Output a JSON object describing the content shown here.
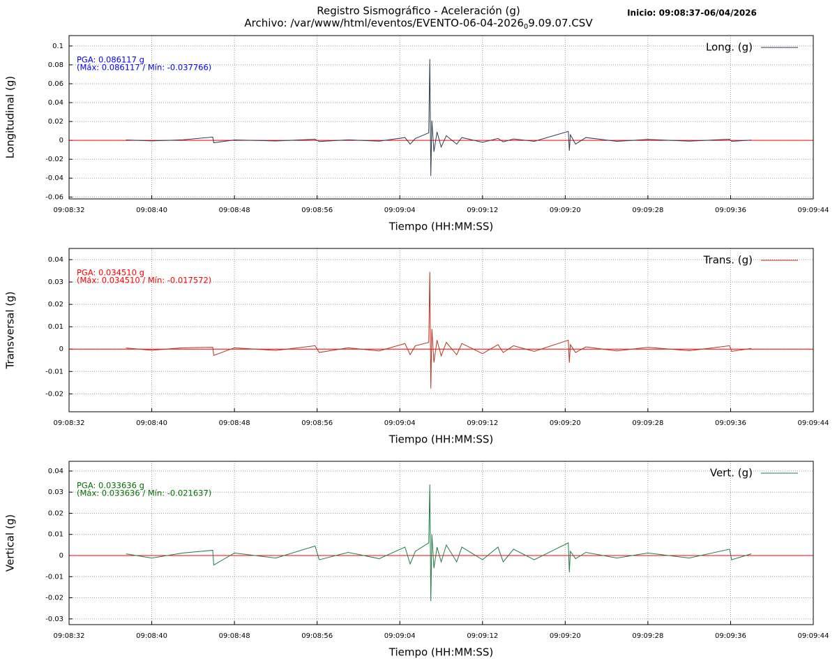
{
  "header": {
    "title": "Registro Sismográfico - Aceleración (g)",
    "file_prefix": "Archivo: /var/www/html/eventos/EVENTO-06-04-2026",
    "file_sub": "0",
    "file_suffix": "9.09.07.CSV",
    "start": "Inicio: 09:08:37-06/04/2026"
  },
  "chart_data": [
    {
      "type": "line",
      "xlabel": "Tiempo (HH:MM:SS)",
      "ylabel": "Longitudinal (g)",
      "grid": true,
      "legend": "upper right",
      "zero_line_color": "#ff0000",
      "annotation_color": "#0000ff",
      "annotations": [
        "PGA: 0.086117 g",
        "(Máx: 0.086117 / Mín: -0.037766)"
      ],
      "xlim": [
        0,
        72
      ],
      "ylim": [
        -0.062,
        0.111
      ],
      "xticks": [
        {
          "value": 0,
          "label": "09:08:32"
        },
        {
          "value": 8,
          "label": "09:08:40"
        },
        {
          "value": 16,
          "label": "09:08:48"
        },
        {
          "value": 24,
          "label": "09:08:56"
        },
        {
          "value": 32,
          "label": "09:09:04"
        },
        {
          "value": 40,
          "label": "09:09:12"
        },
        {
          "value": 48,
          "label": "09:09:20"
        },
        {
          "value": 56,
          "label": "09:09:28"
        },
        {
          "value": 64,
          "label": "09:09:36"
        },
        {
          "value": 72,
          "label": "09:09:44"
        }
      ],
      "yticks": [
        0.1,
        0.08,
        0.06,
        0.04,
        0.02,
        0,
        -0.02,
        -0.04,
        -0.06
      ],
      "series": [
        {
          "name": "Long. (g)",
          "color": "#2b3a50",
          "x": [
            5.5,
            8,
            11,
            13.9,
            14.0,
            16,
            20,
            23.8,
            24.2,
            27,
            30,
            32.5,
            33.0,
            33.5,
            34.8,
            34.9,
            35.0,
            35.1,
            35.3,
            35.6,
            36,
            36.5,
            37.5,
            38,
            40,
            41.5,
            42,
            43,
            45,
            48.3,
            48.4,
            48.5,
            49,
            50,
            53,
            56,
            60,
            63.9,
            64.1,
            66
          ],
          "values": [
            0.0005,
            -0.0005,
            0.0006,
            0.0035,
            -0.0025,
            0.0005,
            -0.0006,
            0.0012,
            -0.0012,
            0.0006,
            -0.0008,
            0.003,
            -0.004,
            0.002,
            0.008,
            0.086117,
            -0.037766,
            0.021,
            -0.012,
            0.009,
            -0.007,
            0.005,
            -0.004,
            0.003,
            -0.002,
            0.002,
            -0.0015,
            0.0015,
            -0.001,
            0.0095,
            -0.011,
            0.006,
            -0.004,
            0.003,
            -0.001,
            0.001,
            -0.0008,
            0.0012,
            -0.001,
            0.0003
          ]
        }
      ]
    },
    {
      "type": "line",
      "xlabel": "Tiempo (HH:MM:SS)",
      "ylabel": "Transversal (g)",
      "grid": true,
      "legend": "upper right",
      "zero_line_color": "#ff0000",
      "annotation_color": "#ff0000",
      "annotations": [
        "PGA: 0.034510 g",
        "(Máx: 0.034510 / Mín: -0.017572)"
      ],
      "xlim": [
        0,
        72
      ],
      "ylim": [
        -0.028,
        0.045
      ],
      "xticks": [
        {
          "value": 0,
          "label": "09:08:32"
        },
        {
          "value": 8,
          "label": "09:08:40"
        },
        {
          "value": 16,
          "label": "09:08:48"
        },
        {
          "value": 24,
          "label": "09:08:56"
        },
        {
          "value": 32,
          "label": "09:09:04"
        },
        {
          "value": 40,
          "label": "09:09:12"
        },
        {
          "value": 48,
          "label": "09:09:20"
        },
        {
          "value": 56,
          "label": "09:09:28"
        },
        {
          "value": 64,
          "label": "09:09:36"
        },
        {
          "value": 72,
          "label": "09:09:44"
        }
      ],
      "yticks": [
        0.04,
        0.03,
        0.02,
        0.01,
        0,
        -0.01,
        -0.02
      ],
      "series": [
        {
          "name": "Trans. (g)",
          "color": "#b8321f",
          "x": [
            5.5,
            8,
            11,
            13.9,
            14.0,
            16,
            20,
            23.8,
            24.2,
            27,
            30,
            32.5,
            33.0,
            33.5,
            34.8,
            34.9,
            35.0,
            35.1,
            35.3,
            35.6,
            36,
            36.5,
            37.5,
            38,
            40,
            41.5,
            42,
            43,
            45,
            48.3,
            48.4,
            48.5,
            49,
            50,
            53,
            56,
            60,
            63.9,
            64.1,
            66
          ],
          "values": [
            0.0005,
            -0.0005,
            0.0006,
            0.0008,
            -0.0028,
            0.0006,
            -0.0006,
            0.0015,
            -0.0015,
            0.0006,
            -0.0008,
            0.0025,
            -0.0025,
            0.0015,
            0.003,
            0.03451,
            -0.017572,
            0.009,
            -0.006,
            0.004,
            -0.003,
            0.003,
            -0.0025,
            0.0025,
            -0.002,
            0.002,
            -0.0015,
            0.0015,
            -0.001,
            0.004,
            -0.006,
            0.002,
            -0.0015,
            0.001,
            -0.0008,
            0.0008,
            -0.0007,
            0.0015,
            -0.001,
            0.0003
          ]
        }
      ]
    },
    {
      "type": "line",
      "xlabel": "Tiempo (HH:MM:SS)",
      "ylabel": "Vertical (g)",
      "grid": true,
      "legend": "upper right",
      "zero_line_color": "#ff0000",
      "annotation_color": "#007000",
      "annotations": [
        "PGA: 0.033636 g",
        "(Máx: 0.033636 / Mín: -0.021637)"
      ],
      "xlim": [
        0,
        72
      ],
      "ylim": [
        -0.0327,
        0.0446
      ],
      "xticks": [
        {
          "value": 0,
          "label": "09:08:32"
        },
        {
          "value": 8,
          "label": "09:08:40"
        },
        {
          "value": 16,
          "label": "09:08:48"
        },
        {
          "value": 24,
          "label": "09:08:56"
        },
        {
          "value": 32,
          "label": "09:09:04"
        },
        {
          "value": 40,
          "label": "09:09:12"
        },
        {
          "value": 48,
          "label": "09:09:20"
        },
        {
          "value": 56,
          "label": "09:09:28"
        },
        {
          "value": 64,
          "label": "09:09:36"
        },
        {
          "value": 72,
          "label": "09:09:44"
        }
      ],
      "yticks": [
        0.04,
        0.03,
        0.02,
        0.01,
        0,
        -0.01,
        -0.02,
        -0.03
      ],
      "series": [
        {
          "name": "Vert. (g)",
          "color": "#1e7b46",
          "x": [
            5.5,
            8,
            11,
            13.9,
            14.0,
            16,
            20,
            23.8,
            24.2,
            27,
            30,
            32.5,
            33.0,
            33.5,
            34.8,
            34.9,
            35.0,
            35.1,
            35.3,
            35.6,
            36,
            36.5,
            37.5,
            38,
            40,
            41.5,
            42,
            43,
            45,
            48.3,
            48.4,
            48.5,
            49,
            50,
            53,
            56,
            60,
            63.9,
            64.1,
            66
          ],
          "values": [
            0.0008,
            -0.0012,
            0.0012,
            0.0025,
            -0.0045,
            0.0012,
            -0.0012,
            0.0045,
            -0.002,
            0.0015,
            -0.0015,
            0.004,
            -0.004,
            0.002,
            0.006,
            0.033636,
            -0.021637,
            0.01,
            -0.006,
            0.004,
            -0.003,
            0.005,
            -0.003,
            0.004,
            -0.002,
            0.004,
            -0.003,
            0.003,
            -0.002,
            0.006,
            -0.008,
            0.002,
            -0.0015,
            0.0015,
            -0.0012,
            0.0012,
            -0.0012,
            0.003,
            -0.002,
            0.0008
          ]
        }
      ]
    }
  ]
}
